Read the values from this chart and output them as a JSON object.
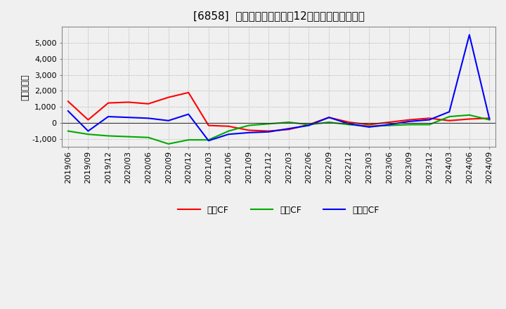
{
  "title": "[6858]  キャッシュフローの12か月移動合計の推移",
  "ylabel": "（百万円）",
  "background_color": "#f0f0f0",
  "plot_bg_color": "#f0f0f0",
  "grid_color": "#999999",
  "dates": [
    "2019/06",
    "2019/09",
    "2019/12",
    "2020/03",
    "2020/06",
    "2020/09",
    "2020/12",
    "2021/03",
    "2021/06",
    "2021/09",
    "2021/12",
    "2022/03",
    "2022/06",
    "2022/09",
    "2022/12",
    "2023/03",
    "2023/06",
    "2023/09",
    "2023/12",
    "2024/03",
    "2024/06",
    "2024/09"
  ],
  "operating_cf": [
    1350,
    200,
    1250,
    1300,
    1200,
    1600,
    1900,
    -150,
    -200,
    -450,
    -500,
    -400,
    -100,
    350,
    50,
    -100,
    50,
    200,
    300,
    150,
    250,
    300
  ],
  "investing_cf": [
    -500,
    -700,
    -800,
    -850,
    -900,
    -1300,
    -1050,
    -1050,
    -500,
    -150,
    -50,
    50,
    -100,
    50,
    -100,
    -200,
    -150,
    -100,
    -100,
    400,
    500,
    200
  ],
  "free_cf": [
    750,
    -500,
    400,
    350,
    300,
    150,
    550,
    -1100,
    -700,
    -600,
    -550,
    -350,
    -150,
    350,
    -50,
    -250,
    -100,
    100,
    200,
    700,
    5500,
    250
  ],
  "operating_color": "#ff0000",
  "investing_color": "#00aa00",
  "free_color": "#0000ff",
  "ylim": [
    -1500,
    6000
  ],
  "yticks": [
    -1000,
    0,
    1000,
    2000,
    3000,
    4000,
    5000
  ],
  "legend_labels": [
    "営業CF",
    "投資CF",
    "フリーCF"
  ]
}
